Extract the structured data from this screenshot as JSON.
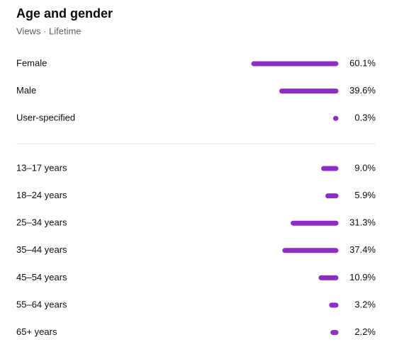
{
  "chart_data": [
    {
      "type": "bar",
      "orientation": "horizontal",
      "title": "Age and gender",
      "subtitle": "Views · Lifetime",
      "color": "#8e2dc5",
      "categories": [
        "Female",
        "Male",
        "User-specified"
      ],
      "values": [
        60.1,
        39.6,
        0.3
      ],
      "value_labels": [
        "60.1%",
        "39.6%",
        "0.3%"
      ]
    },
    {
      "type": "bar",
      "orientation": "horizontal",
      "color": "#8e2dc5",
      "categories": [
        "13–17 years",
        "18–24 years",
        "25–34 years",
        "35–44 years",
        "45–54 years",
        "55–64 years",
        "65+ years"
      ],
      "values": [
        9.0,
        5.9,
        31.3,
        37.4,
        10.9,
        3.2,
        2.2
      ],
      "value_labels": [
        "9.0%",
        "5.9%",
        "31.3%",
        "37.4%",
        "10.9%",
        "3.2%",
        "2.2%"
      ]
    }
  ]
}
